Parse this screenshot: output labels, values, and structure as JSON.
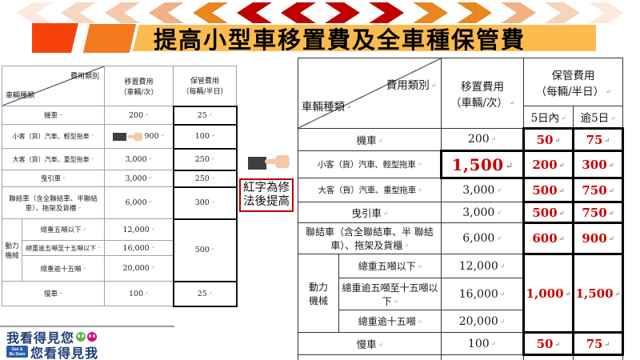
{
  "banner": {
    "title": "提高小型車移置費及全車種保管費",
    "bar_color": "#FBBB4E",
    "orange_color": "#F47A1F",
    "red_color": "#F8420D",
    "chevrons": [
      {
        "dir": "left",
        "color": "#FBE9DE"
      },
      {
        "dir": "left",
        "color": "#F8D8C2"
      },
      {
        "dir": "left",
        "color": "#F5C9AB"
      },
      {
        "dir": "left",
        "color": "#F0B184"
      },
      {
        "dir": "left",
        "color": "#E8861F"
      },
      {
        "dir": "left",
        "color": "#C00000"
      },
      {
        "dir": "left",
        "color": "#C00000"
      },
      {
        "dir": "right",
        "color": "#C00000"
      },
      {
        "dir": "right",
        "color": "#C00000"
      },
      {
        "dir": "right",
        "color": "#E8861F"
      },
      {
        "dir": "right",
        "color": "#E8861F"
      },
      {
        "dir": "right",
        "color": "#F2B183"
      },
      {
        "dir": "right",
        "color": "#F7D3BA"
      },
      {
        "dir": "right",
        "color": "#FBE9DE"
      }
    ]
  },
  "annotation": {
    "label": "紅字為修法後提高",
    "border_color": "#C00000",
    "hand_icon": "pointing-hand",
    "hand_color": "#F5C9A2",
    "redaction_color": "#3F3F3F"
  },
  "left_table": {
    "header": {
      "fee_category": "費用類別",
      "vehicle_type": "車輛種類",
      "relocation": "移置費用\n（車輛/次）",
      "storage": "保管費用\n（每輛/半日）"
    },
    "rows": [
      {
        "label": "機車",
        "relocation": "200",
        "storage": "25"
      },
      {
        "label": "小客（貨）汽車、輕型拖車",
        "relocation": "900",
        "storage": "100"
      },
      {
        "label": "大客（貨）汽車、重型拖車",
        "relocation": "3,000",
        "storage": "250"
      },
      {
        "label": "曳引車",
        "relocation": "3,000",
        "storage": "250"
      },
      {
        "label": "聯結車（含全聯結車、半聯結 車）、拖架及貨櫃",
        "relocation": "6,000",
        "storage": "300"
      }
    ],
    "power_group": {
      "label": "動力機械",
      "sub_rows": [
        {
          "label": "總重五噸以下",
          "relocation": "12,000"
        },
        {
          "label": "總重逾五噸至十五噸以下",
          "relocation": "16,000"
        },
        {
          "label": "總重逾十五噸",
          "relocation": "20,000"
        }
      ],
      "storage": "500"
    },
    "last_row": {
      "label": "慢車",
      "relocation": "100",
      "storage": "25"
    }
  },
  "right_table": {
    "accent_color": "#CC0000",
    "header": {
      "fee_category": "費用類別",
      "vehicle_type": "車輛種類",
      "relocation": "移置費用\n（車輛/次）",
      "storage": "保管費用\n（每輛/半日）",
      "within5": "5日內",
      "over5": "逾5日"
    },
    "rows": [
      {
        "label": "機車",
        "relocation": "200",
        "within5": "50",
        "over5": "75"
      },
      {
        "label": "小客（貨）汽車、輕型拖車",
        "relocation": "1,500",
        "within5": "200",
        "over5": "300"
      },
      {
        "label": "大客（貨）汽車、重型拖車",
        "relocation": "3,000",
        "within5": "500",
        "over5": "750"
      },
      {
        "label": "曳引車",
        "relocation": "3,000",
        "within5": "500",
        "over5": "750"
      },
      {
        "label": "聯結車（含全聯結車、半 聯結 車）、拖架及貨櫃",
        "relocation": "6,000",
        "within5": "600",
        "over5": "900"
      }
    ],
    "power_group": {
      "label": "動力機械",
      "sub_rows": [
        {
          "label": "總重五噸以下",
          "relocation": "12,000"
        },
        {
          "label": "總重逾五噸至十五噸以下",
          "relocation": "16,000"
        },
        {
          "label": "總重逾十五噸",
          "relocation": "20,000"
        }
      ],
      "within5": "1,000",
      "over5": "1,500"
    },
    "last_row": {
      "label": "慢車",
      "relocation": "100",
      "within5": "50",
      "over5": "75"
    }
  },
  "logo": {
    "line1": "我看得見您",
    "line2": "您看得見我",
    "badge_line1": "See &",
    "badge_line2": "Be Seen",
    "text_color": "#1E3C78",
    "face_green": "#5CB949",
    "face_pink": "#E4007F"
  }
}
